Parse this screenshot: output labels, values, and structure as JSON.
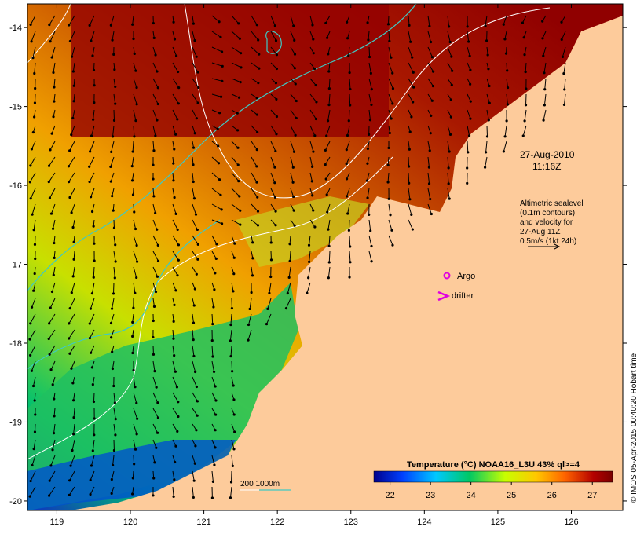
{
  "map": {
    "date_label": "27-Aug-2010",
    "time_label": "11:16Z",
    "altimetry_note": [
      "Altimetric sealevel",
      "(0.1m contours)",
      "and velocity for",
      "27-Aug 11Z",
      "0.5m/s (1kt 24h)"
    ],
    "legend_argo": "Argo",
    "legend_drifter": "drifter",
    "depth_label": "200  1000m",
    "credit": "© IMOS 05-Apr-2015 00:40:20 Hobart time"
  },
  "colorbar": {
    "title": "Temperature (°C) NOAA16_L3U 43% ql>=4",
    "ticks": [
      "22",
      "23",
      "24",
      "25",
      "26",
      "27"
    ],
    "range": [
      21.6,
      27.5
    ],
    "colors": [
      "#00008b",
      "#0040ff",
      "#00c8ff",
      "#00c864",
      "#c8ff00",
      "#ffc800",
      "#ff6400",
      "#b40000",
      "#7a0000"
    ]
  },
  "axes": {
    "x_ticks": [
      "119",
      "120",
      "121",
      "122",
      "123",
      "124",
      "125",
      "126"
    ],
    "y_ticks": [
      "-14",
      "-15",
      "-16",
      "-17",
      "-18",
      "-19",
      "-20"
    ],
    "x_range": [
      118.6,
      126.7
    ],
    "y_range": [
      -20.12,
      -13.7
    ]
  },
  "colors": {
    "land": "#fdcb9b",
    "contour_200m": "#ffffff",
    "contour_1000m": "#3fc9c3",
    "argo": "#e000e0",
    "drifter": "#e000e0"
  }
}
